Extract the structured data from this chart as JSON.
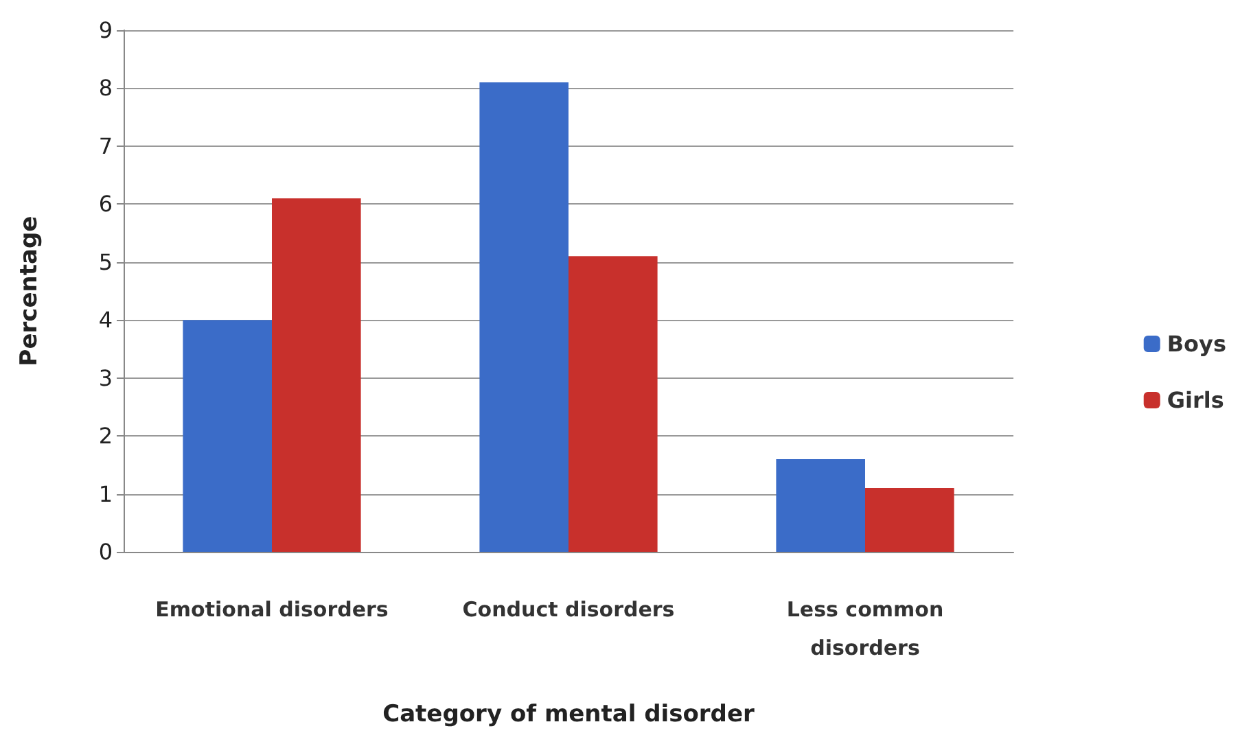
{
  "chart_data": {
    "type": "bar",
    "xlabel": "Category of mental disorder",
    "ylabel": "Percentage",
    "categories": [
      "Emotional disorders",
      "Conduct disorders",
      "Less common\ndisorders"
    ],
    "series": [
      {
        "name": "Boys",
        "color": "#3b6cc8",
        "values": [
          4.0,
          8.1,
          1.6
        ]
      },
      {
        "name": "Girls",
        "color": "#c8302c",
        "values": [
          6.1,
          5.1,
          1.1
        ]
      }
    ],
    "ylim": [
      0,
      9
    ],
    "yticks": [
      0,
      1,
      2,
      3,
      4,
      5,
      6,
      7,
      8,
      9
    ],
    "grid": "y",
    "legend": "right"
  }
}
